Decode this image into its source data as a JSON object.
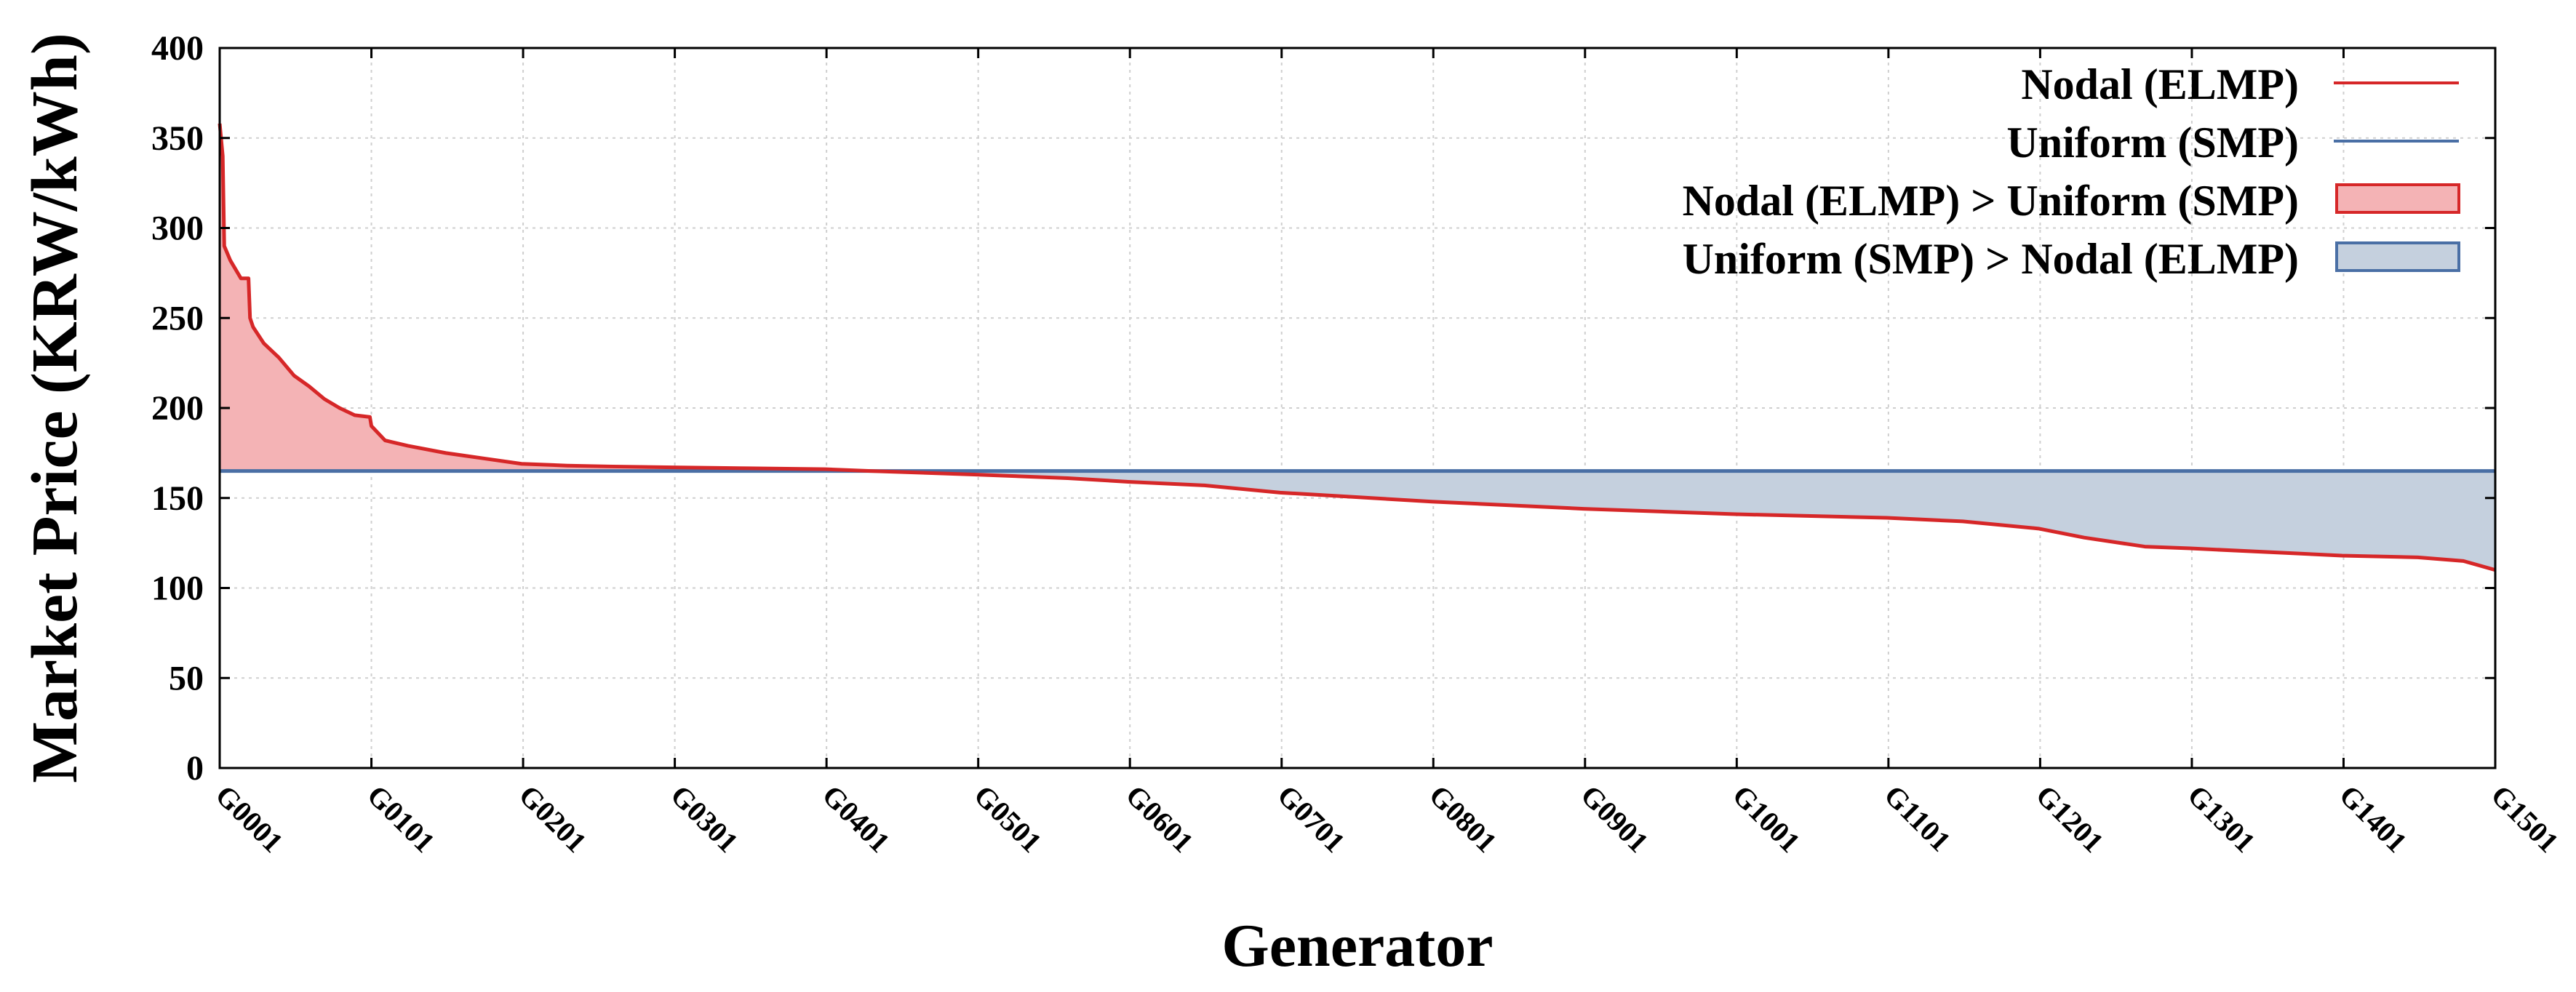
{
  "chart_data": {
    "type": "line",
    "ylabel": "Market Price (KRW/kWh)",
    "xlabel": "Generator",
    "ylim": [
      0,
      400
    ],
    "yticks": [
      0,
      50,
      100,
      150,
      200,
      250,
      300,
      350,
      400
    ],
    "x_range": [
      1,
      1501
    ],
    "xticks": [
      {
        "x": 1,
        "label": "G0001"
      },
      {
        "x": 101,
        "label": "G0101"
      },
      {
        "x": 201,
        "label": "G0201"
      },
      {
        "x": 301,
        "label": "G0301"
      },
      {
        "x": 401,
        "label": "G0401"
      },
      {
        "x": 501,
        "label": "G0501"
      },
      {
        "x": 601,
        "label": "G0601"
      },
      {
        "x": 701,
        "label": "G0701"
      },
      {
        "x": 801,
        "label": "G0801"
      },
      {
        "x": 901,
        "label": "G0901"
      },
      {
        "x": 1001,
        "label": "G1001"
      },
      {
        "x": 1101,
        "label": "G1101"
      },
      {
        "x": 1201,
        "label": "G1201"
      },
      {
        "x": 1301,
        "label": "G1301"
      },
      {
        "x": 1401,
        "label": "G1401"
      },
      {
        "x": 1501,
        "label": "G1501"
      }
    ],
    "grid": true,
    "legend_position": "top-right",
    "series": [
      {
        "name": "Nodal (ELMP)",
        "color": "#d62728",
        "x": [
          1,
          3,
          4,
          8,
          15,
          20,
          21,
          23,
          30,
          40,
          50,
          60,
          70,
          80,
          90,
          100,
          101,
          110,
          115,
          125,
          150,
          175,
          200,
          230,
          260,
          300,
          350,
          400,
          430,
          500,
          560,
          600,
          650,
          700,
          800,
          900,
          1000,
          1100,
          1150,
          1200,
          1230,
          1270,
          1300,
          1400,
          1450,
          1480,
          1501
        ],
        "values": [
          358,
          340,
          290,
          282,
          272,
          272,
          250,
          245,
          236,
          228,
          218,
          212,
          205,
          200,
          196,
          195,
          190,
          182,
          181,
          179,
          175,
          172,
          169,
          168,
          167.5,
          167,
          166.5,
          166,
          165,
          163,
          161,
          159,
          157,
          153,
          148,
          144,
          141,
          139,
          137,
          133,
          128,
          123,
          122,
          118,
          117,
          115,
          110
        ]
      },
      {
        "name": "Uniform (SMP)",
        "color": "#4a6fa5",
        "x": [
          1,
          1501
        ],
        "values": [
          165,
          165
        ]
      }
    ],
    "fills": [
      {
        "name": "Nodal (ELMP) > Uniform (SMP)",
        "color": "#f4b3b5",
        "edge": "#d62728"
      },
      {
        "name": "Uniform (SMP) > Nodal (ELMP)",
        "color": "#c5d0de",
        "edge": "#4a6fa5"
      }
    ]
  }
}
